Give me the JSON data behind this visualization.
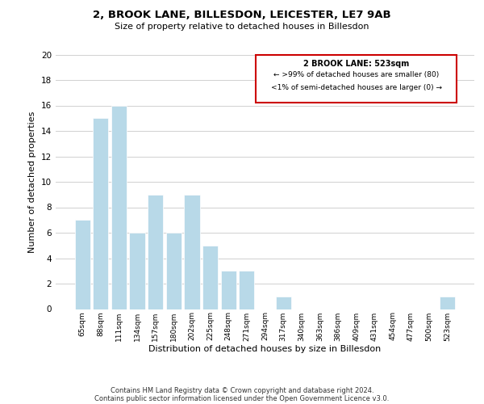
{
  "title": "2, BROOK LANE, BILLESDON, LEICESTER, LE7 9AB",
  "subtitle": "Size of property relative to detached houses in Billesdon",
  "xlabel": "Distribution of detached houses by size in Billesdon",
  "ylabel": "Number of detached properties",
  "bar_labels": [
    "65sqm",
    "88sqm",
    "111sqm",
    "134sqm",
    "157sqm",
    "180sqm",
    "202sqm",
    "225sqm",
    "248sqm",
    "271sqm",
    "294sqm",
    "317sqm",
    "340sqm",
    "363sqm",
    "386sqm",
    "409sqm",
    "431sqm",
    "454sqm",
    "477sqm",
    "500sqm",
    "523sqm"
  ],
  "bar_values": [
    7,
    15,
    16,
    6,
    9,
    6,
    9,
    5,
    3,
    3,
    0,
    1,
    0,
    0,
    0,
    0,
    0,
    0,
    0,
    0,
    1
  ],
  "bar_color": "#b8d9e8",
  "ylim": [
    0,
    20
  ],
  "yticks": [
    0,
    2,
    4,
    6,
    8,
    10,
    12,
    14,
    16,
    18,
    20
  ],
  "legend_title": "2 BROOK LANE: 523sqm",
  "legend_line1": "← >99% of detached houses are smaller (80)",
  "legend_line2": "<1% of semi-detached houses are larger (0) →",
  "legend_box_color": "#ffffff",
  "legend_box_edge_color": "#cc0000",
  "grid_color": "#d0d0d0",
  "footer_line1": "Contains HM Land Registry data © Crown copyright and database right 2024.",
  "footer_line2": "Contains public sector information licensed under the Open Government Licence v3.0."
}
